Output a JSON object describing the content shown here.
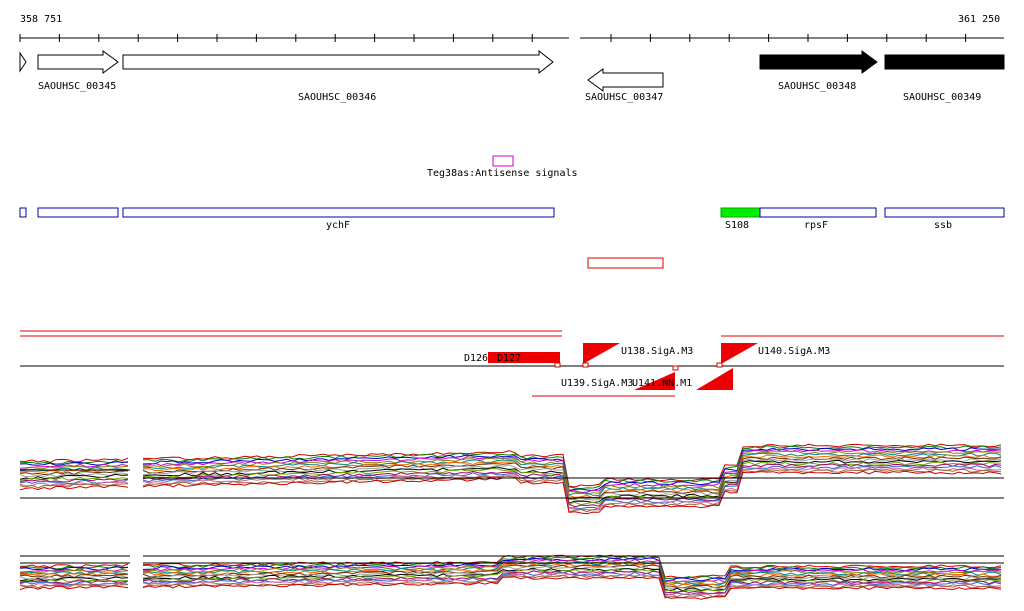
{
  "coordinates": {
    "start": "358 751",
    "end": "361 250"
  },
  "genes": [
    {
      "id": "g0",
      "label": "",
      "strand": "+",
      "fill": "#ffffff"
    },
    {
      "id": "g345",
      "label": "SAOUHSC_00345",
      "strand": "+",
      "fill": "#ffffff"
    },
    {
      "id": "g346",
      "label": "SAOUHSC_00346",
      "strand": "+",
      "fill": "#ffffff"
    },
    {
      "id": "g347",
      "label": "SAOUHSC_00347",
      "strand": "-",
      "fill": "#ffffff"
    },
    {
      "id": "g348",
      "label": "SAOUHSC_00348",
      "strand": "+",
      "fill": "#000000"
    },
    {
      "id": "g349",
      "label": "SAOUHSC_00349",
      "strand": "+",
      "fill": "#000000"
    }
  ],
  "antisense": {
    "label": "Teg38as:Antisense signals",
    "color": "#cc00cc"
  },
  "annotations": [
    {
      "id": "a0",
      "label": ""
    },
    {
      "id": "a1",
      "label": ""
    },
    {
      "id": "a2",
      "label": "ychF"
    },
    {
      "id": "a3",
      "label": "S108",
      "color": "#00ee00"
    },
    {
      "id": "a4",
      "label": "rpsF"
    },
    {
      "id": "a5",
      "label": "ssb"
    }
  ],
  "annotation_color": "#0000aa",
  "transcript_color": "#dd0000",
  "track_features": {
    "d126": "D126",
    "d127": "D127",
    "u138": "U138.SigA.M3",
    "u139": "U139.SigA.M3",
    "u140": "U140.SigA.M3",
    "u141": "U141.NN.M1"
  },
  "palette": [
    "#cc0000",
    "#008800",
    "#0000cc",
    "#cc00cc",
    "#888800",
    "#008888",
    "#ff6600",
    "#663300",
    "#999999",
    "#000000",
    "#66aa00",
    "#aa0066",
    "#3366cc",
    "#cc6699",
    "#996633"
  ]
}
